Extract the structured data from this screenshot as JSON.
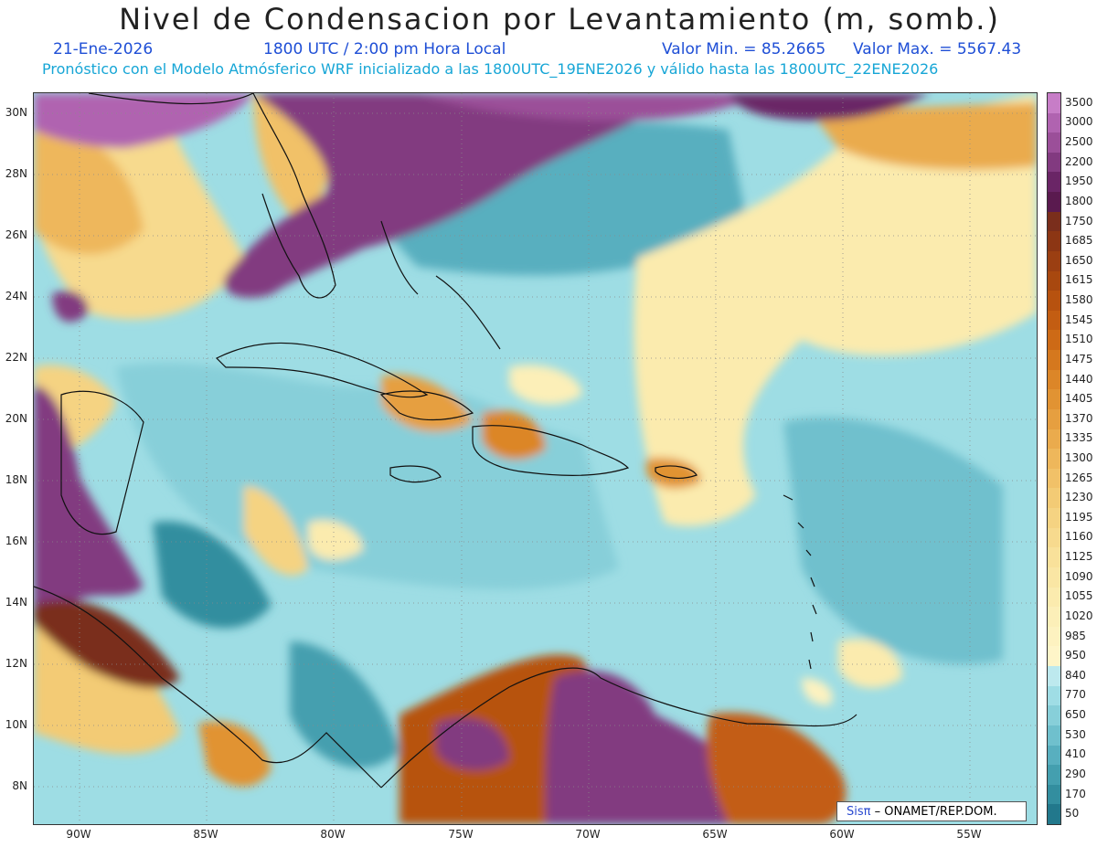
{
  "header": {
    "title": "Nivel de Condensacion por Levantamiento (m, somb.)",
    "date": "21-Ene-2026",
    "time": "1800 UTC / 2:00 pm Hora Local",
    "min_value": "Valor Min. = 85.2665",
    "max_value": "Valor Max. = 5567.43",
    "forecast_note": "Pronóstico con el Modelo Atmósferico WRF inicializado a las 1800UTC_19ENE2026 y válido hasta las  1800UTC_22ENE2026"
  },
  "map": {
    "lat_labels": [
      "30N",
      "28N",
      "26N",
      "24N",
      "22N",
      "20N",
      "18N",
      "16N",
      "14N",
      "12N",
      "10N",
      "8N"
    ],
    "lon_labels": [
      "90W",
      "85W",
      "80W",
      "75W",
      "70W",
      "65W",
      "60W",
      "55W"
    ]
  },
  "colorbar": {
    "levels": [
      "3500",
      "3000",
      "2500",
      "2200",
      "1950",
      "1800",
      "1750",
      "1685",
      "1650",
      "1615",
      "1580",
      "1545",
      "1510",
      "1475",
      "1440",
      "1405",
      "1370",
      "1335",
      "1300",
      "1265",
      "1230",
      "1195",
      "1160",
      "1125",
      "1090",
      "1055",
      "1020",
      "985",
      "950",
      "840",
      "770",
      "650",
      "530",
      "410",
      "290",
      "170",
      "50"
    ],
    "colors": [
      "#c77dc7",
      "#b063b0",
      "#9b4f99",
      "#823a80",
      "#6a2566",
      "#5a1a4f",
      "#7a2e1c",
      "#8c3614",
      "#9b3f12",
      "#a8480f",
      "#b7520f",
      "#c35d12",
      "#cd6a16",
      "#d5781e",
      "#dc8628",
      "#e19333",
      "#e69f40",
      "#eaab4d",
      "#eeb75b",
      "#f1c168",
      "#f3cb75",
      "#f5d382",
      "#f7da8e",
      "#f9e19a",
      "#fae6a4",
      "#fbebae",
      "#fcefb8",
      "#fdf2c0",
      "#fef5c8",
      "#bde9ee",
      "#9fdde5",
      "#87cfd9",
      "#6fc0cd",
      "#58afbf",
      "#449faf",
      "#338e9f",
      "#22788c"
    ]
  },
  "credit": {
    "sis": "Sis",
    "pi": "π",
    "org": "– ONAMET/REP.DOM."
  }
}
